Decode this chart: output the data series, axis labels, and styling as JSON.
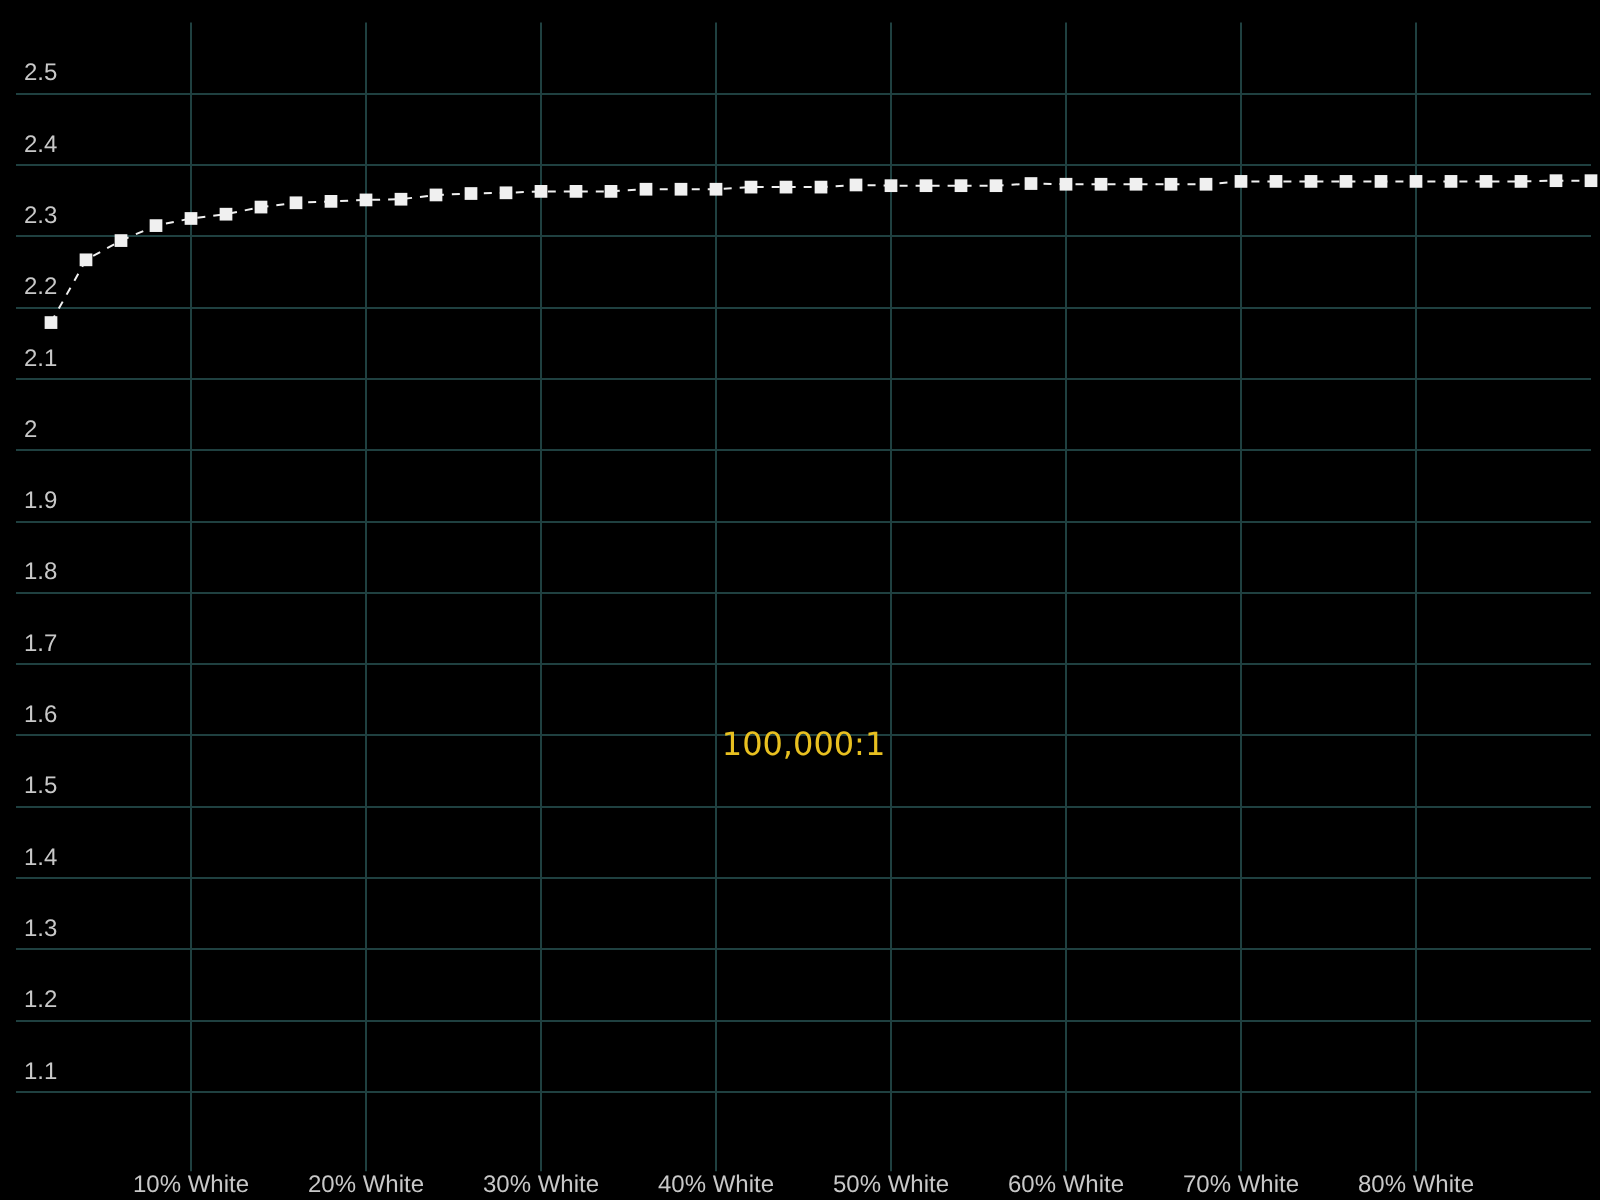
{
  "chart_data": {
    "type": "line",
    "x": [
      2,
      4,
      6,
      8,
      10,
      12,
      14,
      16,
      18,
      20,
      22,
      24,
      26,
      28,
      30,
      32,
      34,
      36,
      38,
      40,
      42,
      44,
      46,
      48,
      50,
      52,
      54,
      56,
      58,
      60,
      62,
      64,
      66,
      68,
      70,
      72,
      74,
      76,
      78,
      80,
      82,
      84,
      86,
      88,
      90
    ],
    "series": [
      {
        "color": "#f0f0f0",
        "values": [
          2.179,
          2.267,
          2.294,
          2.315,
          2.325,
          2.331,
          2.341,
          2.347,
          2.349,
          2.351,
          2.352,
          2.358,
          2.36,
          2.361,
          2.363,
          2.363,
          2.363,
          2.366,
          2.366,
          2.366,
          2.369,
          2.369,
          2.369,
          2.372,
          2.371,
          2.371,
          2.371,
          2.371,
          2.374,
          2.373,
          2.373,
          2.373,
          2.373,
          2.373,
          2.377,
          2.377,
          2.377,
          2.377,
          2.377,
          2.377,
          2.377,
          2.377,
          2.377,
          2.378,
          2.378
        ]
      }
    ],
    "xlim": [
      0,
      90
    ],
    "xticks": [
      {
        "value": 10,
        "label": "10% White"
      },
      {
        "value": 20,
        "label": "20% White"
      },
      {
        "value": 30,
        "label": "30% White"
      },
      {
        "value": 40,
        "label": "40% White"
      },
      {
        "value": 50,
        "label": "50% White"
      },
      {
        "value": 60,
        "label": "60% White"
      },
      {
        "value": 70,
        "label": "70% White"
      },
      {
        "value": 80,
        "label": "80% White"
      }
    ],
    "ylim": [
      1.0,
      2.6
    ],
    "yticks": [
      1.1,
      1.2,
      1.3,
      1.4,
      1.5,
      1.6,
      1.7,
      1.8,
      1.9,
      2,
      2.1,
      2.2,
      2.3,
      2.4,
      2.5
    ],
    "annotations": [
      "100,000:1"
    ],
    "grid": true,
    "legend": false,
    "marker": "square",
    "line_style": "dashed"
  }
}
